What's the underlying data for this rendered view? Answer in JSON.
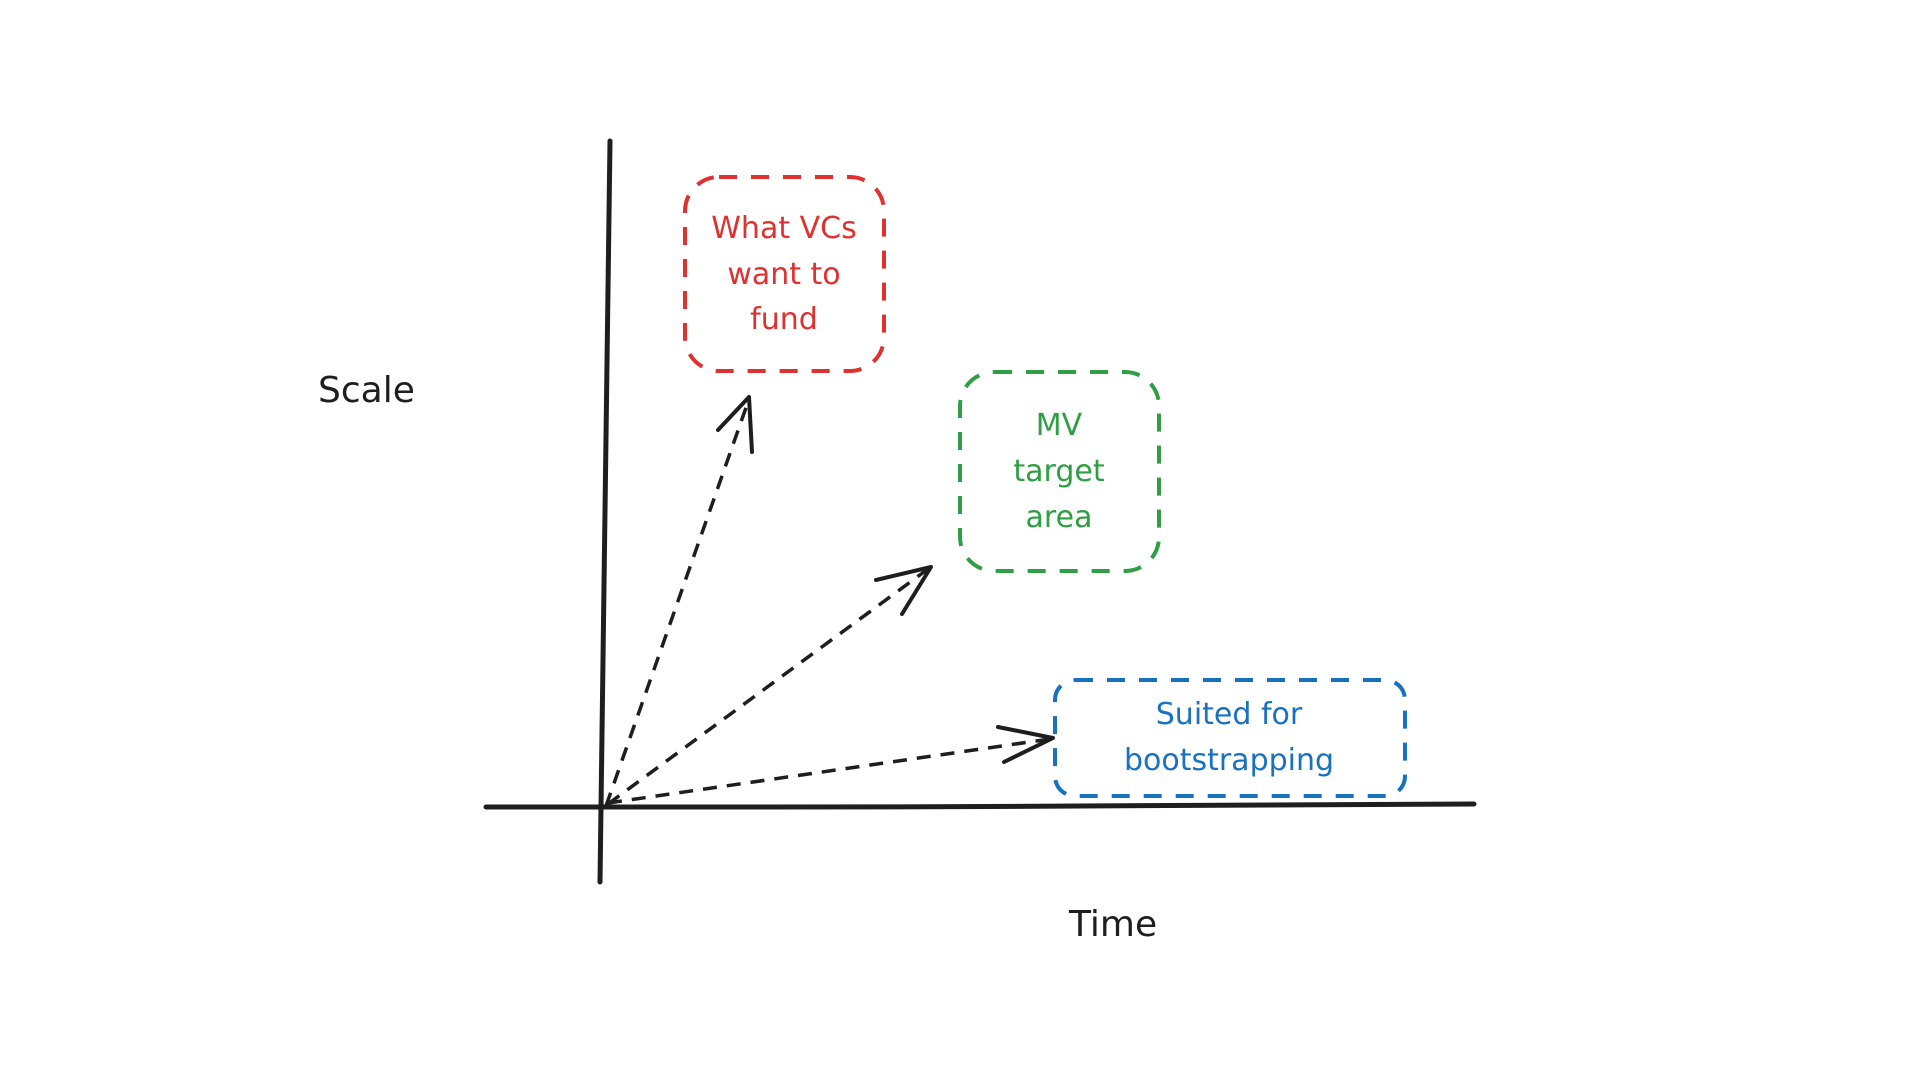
{
  "axes": {
    "y_label": "Scale",
    "x_label": "Time"
  },
  "colors": {
    "ink": "#1e1e1e",
    "red": "#e03131",
    "green": "#2f9e44",
    "blue": "#1971c2"
  },
  "boxes": [
    {
      "lines": [
        "What VCs",
        "want to",
        "fund"
      ],
      "color": "red"
    },
    {
      "lines": [
        "MV",
        "target",
        "area"
      ],
      "color": "green"
    },
    {
      "lines": [
        "Suited for",
        "bootstrapping"
      ],
      "color": "blue"
    }
  ]
}
